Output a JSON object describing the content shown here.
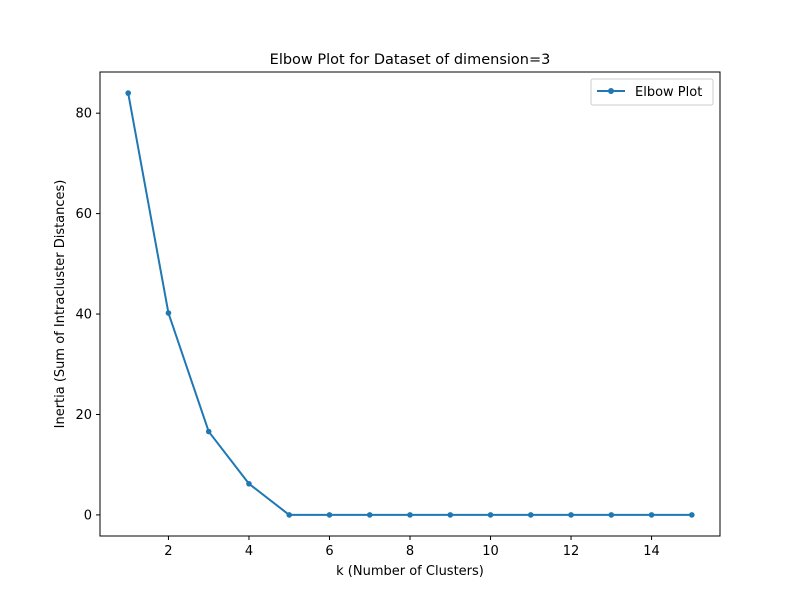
{
  "chart_data": {
    "type": "line",
    "title": "Elbow Plot for Dataset of dimension=3",
    "xlabel": "k (Number of Clusters)",
    "ylabel": "Inertia (Sum of Intracluster Distances)",
    "xlim": [
      0.3,
      15.7
    ],
    "ylim": [
      -4.2,
      88.2
    ],
    "xticks": [
      2,
      4,
      6,
      8,
      10,
      12,
      14
    ],
    "yticks": [
      0,
      20,
      40,
      60,
      80
    ],
    "grid": false,
    "legend_position": "top-right",
    "series": [
      {
        "name": "Elbow Plot",
        "color": "#1f77b4",
        "marker": "circle",
        "x": [
          1,
          2,
          3,
          4,
          5,
          6,
          7,
          8,
          9,
          10,
          11,
          12,
          13,
          14,
          15
        ],
        "y": [
          84.0,
          40.2,
          16.6,
          6.2,
          0.0,
          0.0,
          0.0,
          0.0,
          0.0,
          0.0,
          0.0,
          0.0,
          0.0,
          0.0,
          0.0
        ]
      }
    ]
  }
}
